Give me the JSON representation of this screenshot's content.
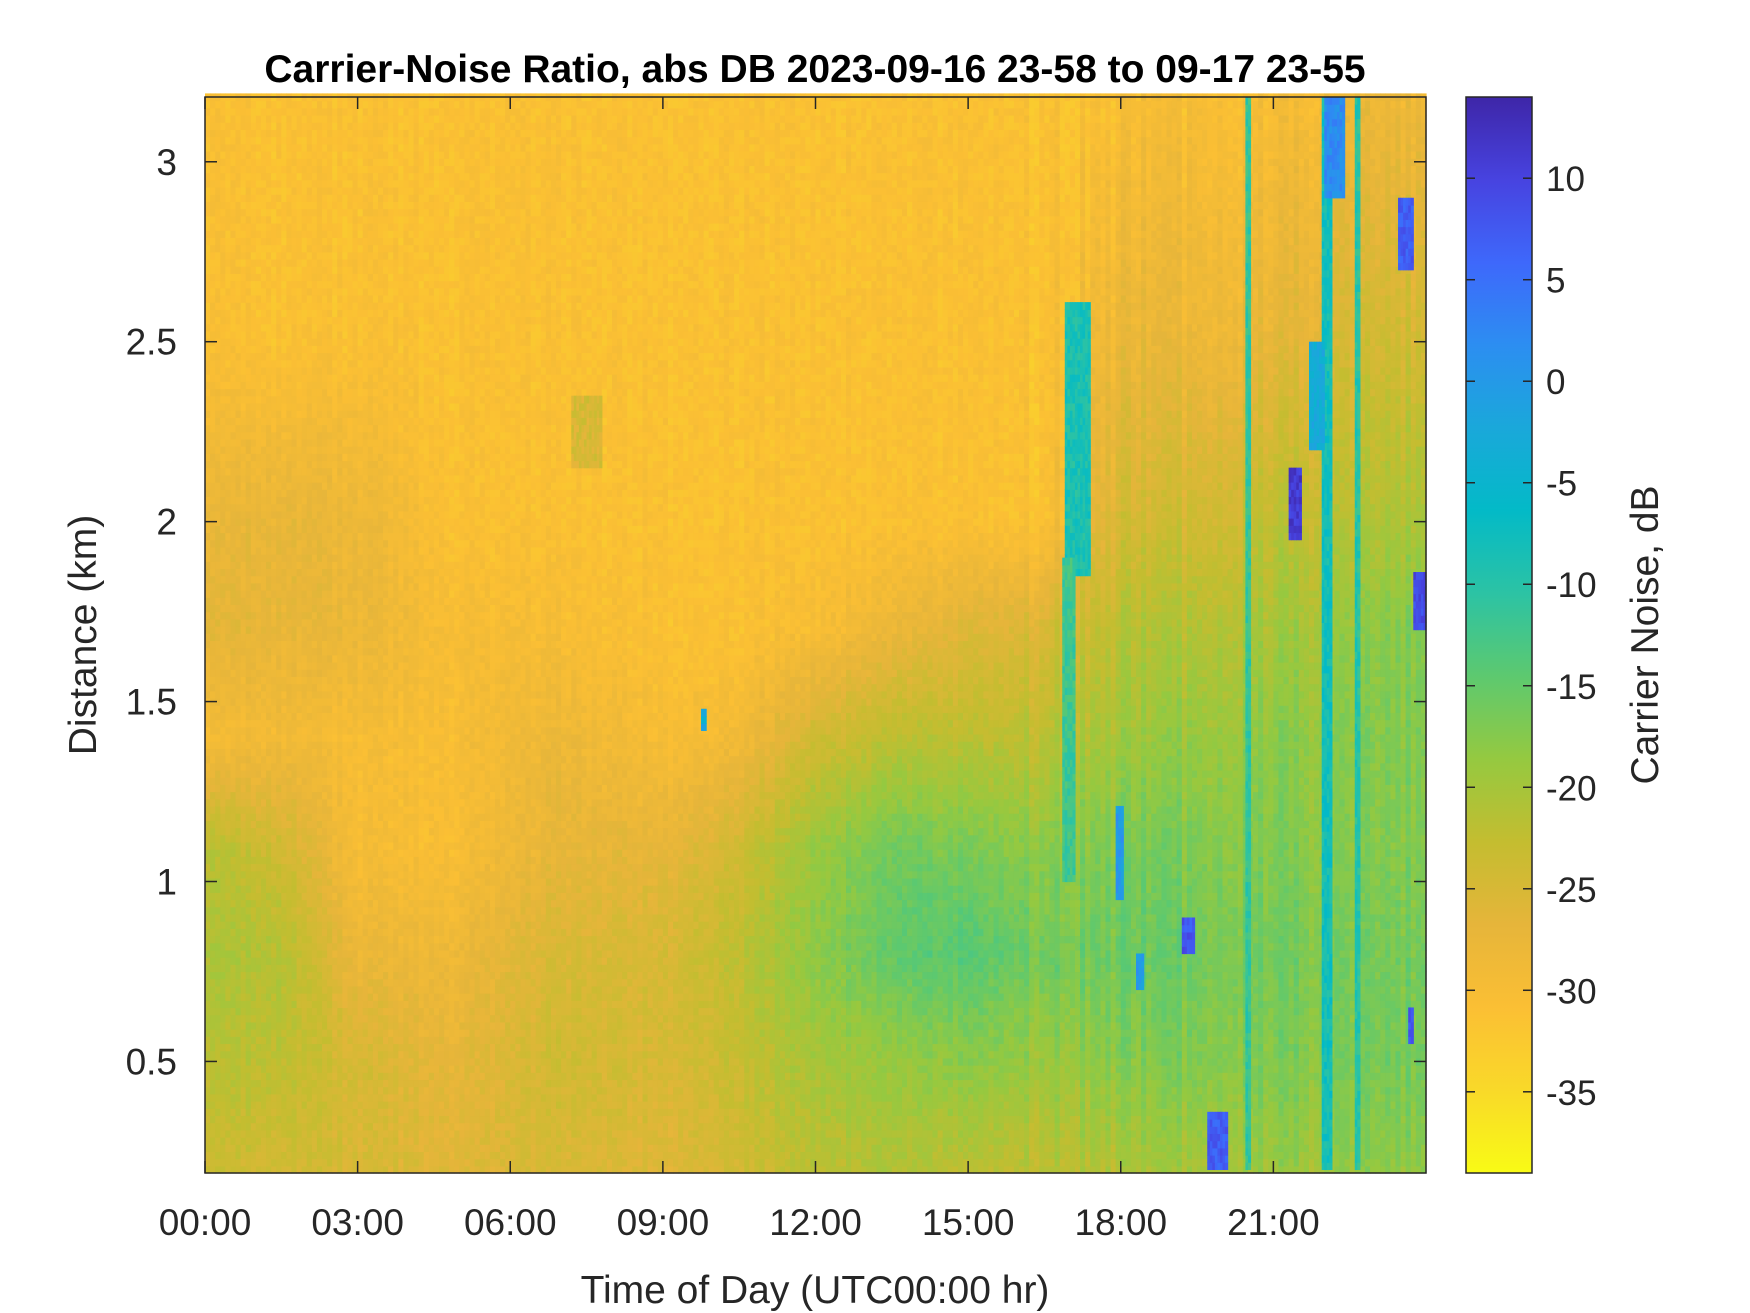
{
  "chart_data": {
    "type": "heatmap",
    "title": "Carrier-Noise Ratio, abs DB 2023-09-16 23-58 to 09-17 23-55",
    "xlabel": "Time of Day (UTC00:00 hr)",
    "ylabel": "Distance (km)",
    "colorbar_label": "Carrier Noise, dB",
    "x_unit": "hour of day",
    "xlim": [
      0,
      24
    ],
    "ylim": [
      0.19,
      3.18
    ],
    "clim": [
      -39,
      14
    ],
    "x_ticks": [
      {
        "value": 0,
        "label": "00:00"
      },
      {
        "value": 3,
        "label": "03:00"
      },
      {
        "value": 6,
        "label": "06:00"
      },
      {
        "value": 9,
        "label": "09:00"
      },
      {
        "value": 12,
        "label": "12:00"
      },
      {
        "value": 15,
        "label": "15:00"
      },
      {
        "value": 18,
        "label": "18:00"
      },
      {
        "value": 21,
        "label": "21:00"
      }
    ],
    "y_ticks": [
      {
        "value": 0.5,
        "label": "0.5"
      },
      {
        "value": 1,
        "label": "1"
      },
      {
        "value": 1.5,
        "label": "1.5"
      },
      {
        "value": 2,
        "label": "2"
      },
      {
        "value": 2.5,
        "label": "2.5"
      },
      {
        "value": 3,
        "label": "3"
      }
    ],
    "colorbar_ticks": [
      {
        "value": 10,
        "label": "10"
      },
      {
        "value": 5,
        "label": "5"
      },
      {
        "value": 0,
        "label": "0"
      },
      {
        "value": -5,
        "label": "-5"
      },
      {
        "value": -10,
        "label": "-10"
      },
      {
        "value": -15,
        "label": "-15"
      },
      {
        "value": -20,
        "label": "-20"
      },
      {
        "value": -25,
        "label": "-25"
      },
      {
        "value": -30,
        "label": "-30"
      },
      {
        "value": -35,
        "label": "-35"
      }
    ],
    "colormap": [
      "#3e26a8",
      "#4743e0",
      "#3e68fb",
      "#2c8ef1",
      "#1aa8da",
      "#03bac7",
      "#2cc3a4",
      "#5dc96f",
      "#95c940",
      "#c4bd30",
      "#e6b53a",
      "#fbbf34",
      "#f9d929",
      "#f9fb15"
    ],
    "grid": false,
    "legend": "colorbar-right",
    "grid_resolution": {
      "dx_hours": 0.1,
      "dy_km": 0.02
    },
    "background_profile": {
      "description": "approximate CNR (dB) vs distance; left columns 0-24 h",
      "times": [
        0,
        1.5,
        3,
        5,
        7,
        9,
        10.5,
        12,
        13.5,
        15,
        16.5,
        18,
        19.5,
        21,
        22.5,
        24
      ],
      "heights": [
        0.2,
        0.5,
        0.8,
        1.1,
        1.4,
        1.7,
        2.0,
        2.5,
        3.2
      ],
      "values": [
        [
          -24,
          -22,
          -21,
          -22,
          -30,
          -27,
          -28,
          -31,
          -31
        ],
        [
          -24,
          -22,
          -21,
          -24,
          -29,
          -27,
          -27,
          -31,
          -31
        ],
        [
          -25,
          -25,
          -28,
          -30,
          -30,
          -28,
          -28,
          -31,
          -31
        ],
        [
          -26,
          -27,
          -28,
          -30,
          -30,
          -30,
          -31,
          -31,
          -31
        ],
        [
          -25,
          -24,
          -25,
          -27,
          -28,
          -30,
          -31,
          -31,
          -31
        ],
        [
          -26,
          -25,
          -25,
          -27,
          -30,
          -31,
          -31,
          -31,
          -31
        ],
        [
          -24,
          -23,
          -22,
          -24,
          -29,
          -31,
          -31,
          -31,
          -31
        ],
        [
          -22,
          -20,
          -18,
          -19,
          -24,
          -30,
          -31,
          -31,
          -31
        ],
        [
          -21,
          -19,
          -15,
          -16,
          -22,
          -28,
          -31,
          -31,
          -31
        ],
        [
          -22,
          -18,
          -14,
          -17,
          -22,
          -26,
          -31,
          -31,
          -31
        ],
        [
          -22,
          -19,
          -16,
          -18,
          -22,
          -25,
          -31,
          -31,
          -31
        ],
        [
          -21,
          -18,
          -16,
          -17,
          -20,
          -22,
          -25,
          -28,
          -31
        ],
        [
          -20,
          -17,
          -16,
          -17,
          -19,
          -21,
          -24,
          -28,
          -30
        ],
        [
          -19,
          -17,
          -16,
          -17,
          -18,
          -20,
          -22,
          -27,
          -30
        ],
        [
          -19,
          -17,
          -17,
          -18,
          -18,
          -19,
          -22,
          -25,
          -29
        ],
        [
          -18,
          -16,
          -16,
          -17,
          -17,
          -17,
          -20,
          -24,
          -28
        ]
      ]
    },
    "features": [
      {
        "t0": 16.9,
        "t1": 17.4,
        "h0": 1.85,
        "h1": 2.6,
        "value": -9
      },
      {
        "t0": 16.85,
        "t1": 17.1,
        "h0": 1.0,
        "h1": 1.9,
        "value": -12
      },
      {
        "t0": 17.9,
        "t1": 18.05,
        "h0": 0.95,
        "h1": 1.2,
        "value": 0
      },
      {
        "t0": 18.3,
        "t1": 18.45,
        "h0": 0.7,
        "h1": 0.8,
        "value": 0
      },
      {
        "t0": 19.2,
        "t1": 19.45,
        "h0": 0.8,
        "h1": 0.9,
        "value": 8
      },
      {
        "t0": 19.7,
        "t1": 20.1,
        "h0": 0.2,
        "h1": 0.35,
        "value": 7
      },
      {
        "t0": 20.45,
        "t1": 20.55,
        "h0": 0.2,
        "h1": 3.18,
        "value": -11
      },
      {
        "t0": 21.95,
        "t1": 22.15,
        "h0": 0.2,
        "h1": 3.18,
        "value": -8
      },
      {
        "t0": 22.6,
        "t1": 22.7,
        "h0": 0.2,
        "h1": 3.18,
        "value": -10
      },
      {
        "t0": 21.3,
        "t1": 21.55,
        "h0": 1.95,
        "h1": 2.15,
        "value": 11
      },
      {
        "t0": 21.7,
        "t1": 22.0,
        "h0": 2.2,
        "h1": 2.5,
        "value": -3
      },
      {
        "t0": 22.0,
        "t1": 22.4,
        "h0": 2.9,
        "h1": 3.18,
        "value": 2
      },
      {
        "t0": 23.45,
        "t1": 23.75,
        "h0": 2.7,
        "h1": 2.9,
        "value": 7
      },
      {
        "t0": 23.75,
        "t1": 24.0,
        "h0": 1.7,
        "h1": 1.85,
        "value": 9
      },
      {
        "t0": 23.65,
        "t1": 23.75,
        "h0": 0.55,
        "h1": 0.65,
        "value": 8
      },
      {
        "t0": 9.75,
        "t1": 9.85,
        "h0": 1.42,
        "h1": 1.47,
        "value": -3
      },
      {
        "t0": 7.2,
        "t1": 7.8,
        "h0": 2.15,
        "h1": 2.35,
        "value": -25
      }
    ]
  }
}
